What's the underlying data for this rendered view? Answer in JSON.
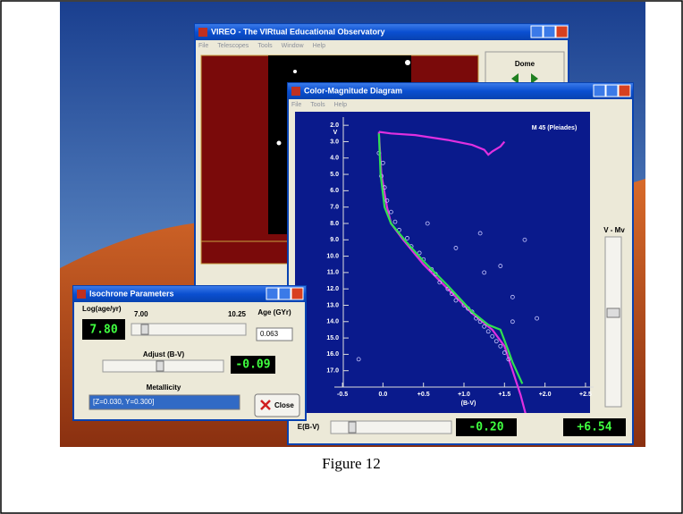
{
  "caption": "Figure 12",
  "vireo": {
    "title": "VIREO - The VIRtual Educational Observatory",
    "menu": [
      "File",
      "Telescopes",
      "Tools",
      "Window",
      "Help"
    ],
    "dome": "Dome"
  },
  "cmd": {
    "title": "Color-Magnitude Diagram",
    "menu": [
      "File",
      "Tools",
      "Help"
    ],
    "plot": {
      "cluster": "M 45 (Pleiades)",
      "ylabel": "V",
      "xlabel": "(B-V)",
      "y_inverted": true,
      "xlim": [
        -0.6,
        2.6
      ],
      "ylim": [
        1.5,
        18.0
      ],
      "xticks": [
        {
          "value": -0.5,
          "label": "-0.5"
        },
        {
          "value": 0,
          "label": "0.0"
        },
        {
          "value": 0.5,
          "label": "+0.5"
        },
        {
          "value": 1,
          "label": "+1.0"
        },
        {
          "value": 1.5,
          "label": "+1.5"
        },
        {
          "value": 2,
          "label": "+2.0"
        },
        {
          "value": 2.5,
          "label": "+2.5"
        }
      ],
      "yticks": [
        {
          "value": 2,
          "label": "2.0"
        },
        {
          "value": 3,
          "label": "3.0"
        },
        {
          "value": 4,
          "label": "4.0"
        },
        {
          "value": 5,
          "label": "5.0"
        },
        {
          "value": 6,
          "label": "6.0"
        },
        {
          "value": 7,
          "label": "7.0"
        },
        {
          "value": 8,
          "label": "8.0"
        },
        {
          "value": 9,
          "label": "9.0"
        },
        {
          "value": 10,
          "label": "10.0"
        },
        {
          "value": 11,
          "label": "11.0"
        },
        {
          "value": 12,
          "label": "12.0"
        },
        {
          "value": 13,
          "label": "13.0"
        },
        {
          "value": 14,
          "label": "14.0"
        },
        {
          "value": 15,
          "label": "15.0"
        },
        {
          "value": 16,
          "label": "16.0"
        },
        {
          "value": 17,
          "label": "17.0"
        }
      ],
      "stars": {
        "color": "#c8c8ff",
        "x": [
          -0.05,
          0.0,
          -0.02,
          0.02,
          0.05,
          0.1,
          0.15,
          0.2,
          0.3,
          0.35,
          0.45,
          0.5,
          0.6,
          0.65,
          0.7,
          0.8,
          0.85,
          0.9,
          1.0,
          1.05,
          1.1,
          1.15,
          1.2,
          1.25,
          1.3,
          1.35,
          1.4,
          1.45,
          1.5,
          1.55,
          0.55,
          0.9,
          1.25,
          1.6,
          1.75,
          1.9,
          1.2,
          1.45,
          -0.3,
          1.6
        ],
        "y": [
          3.7,
          4.3,
          5.1,
          5.8,
          6.6,
          7.3,
          7.9,
          8.4,
          8.9,
          9.4,
          9.8,
          10.2,
          10.8,
          11.1,
          11.6,
          12.0,
          12.3,
          12.7,
          13.0,
          13.2,
          13.4,
          13.8,
          14.0,
          14.3,
          14.6,
          14.9,
          15.2,
          15.5,
          15.9,
          16.3,
          8.0,
          9.5,
          11.0,
          12.5,
          9.0,
          13.8,
          8.6,
          10.6,
          16.3,
          14.0
        ]
      },
      "isochrone": {
        "color": "#e030e0",
        "x": [
          1.5,
          1.45,
          1.35,
          1.3,
          1.25,
          1.1,
          0.8,
          0.4,
          0.1,
          -0.05,
          null,
          -0.05,
          -0.02,
          0.05,
          0.1,
          0.25,
          0.5,
          0.8,
          1.1,
          1.35,
          1.5,
          1.6,
          1.7,
          1.78
        ],
        "y": [
          3.0,
          3.3,
          3.6,
          3.8,
          3.5,
          3.2,
          2.9,
          2.6,
          2.5,
          2.4,
          null,
          2.4,
          5.0,
          7.0,
          8.0,
          9.0,
          10.5,
          12.0,
          13.5,
          14.5,
          15.5,
          17.0,
          18.5,
          20.0
        ]
      },
      "fit": {
        "color": "#30e050",
        "x": [
          -0.05,
          -0.03,
          0.02,
          0.1,
          0.3,
          0.5,
          0.8,
          1.1,
          1.3,
          1.45,
          1.55,
          1.6,
          1.72
        ],
        "y": [
          2.5,
          5.0,
          7.0,
          8.0,
          9.2,
          10.3,
          11.8,
          13.4,
          14.2,
          14.5,
          15.8,
          16.5,
          17.8
        ]
      }
    },
    "vmv_label": "V - Mv",
    "ebv_label": "E(B-V)",
    "ebv_display": "-0.20",
    "vmv_display": "+6.54"
  },
  "iso": {
    "title": "Isochrone Parameters",
    "age_label": "Log(age/yr)",
    "age_display": "7.80",
    "age_min": "7.00",
    "age_max": "10.25",
    "gyr_label": "Age (GYr)",
    "gyr_value": "0.063",
    "adjust_label": "Adjust (B-V)",
    "adjust_display": "-0.09",
    "metal_label": "Metallicity",
    "metal_value": "[Z=0.030, Y=0.300]",
    "close": "Close"
  }
}
